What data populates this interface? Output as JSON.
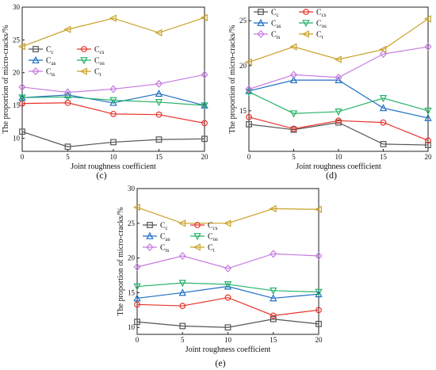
{
  "panel_labels": [
    "(c)",
    "(d)",
    "(e)"
  ],
  "chart_data": [
    {
      "type": "line",
      "panel": "(c)",
      "xlabel": "Joint roughness coefficient",
      "ylabel": "The proportion of micro-cracks/%",
      "x": [
        0,
        5,
        10,
        15,
        20
      ],
      "xlim": [
        0,
        20
      ],
      "ylim": [
        8,
        30
      ],
      "yticks": [
        10,
        15,
        20,
        25,
        30
      ],
      "legend_position": "upper-left",
      "series": [
        {
          "name": "C",
          "sub": "c",
          "color": "#555555",
          "marker": "square",
          "values": [
            11.0,
            8.7,
            9.4,
            9.8,
            9.9
          ]
        },
        {
          "name": "C",
          "sub": "cs",
          "color": "#e8332b",
          "marker": "circle",
          "values": [
            15.3,
            15.4,
            13.7,
            13.6,
            12.3
          ]
        },
        {
          "name": "C",
          "sub": "as",
          "color": "#1f6fc4",
          "marker": "triangle-up",
          "values": [
            16.2,
            16.6,
            15.4,
            16.8,
            15.0
          ]
        },
        {
          "name": "C",
          "sub": "os",
          "color": "#25b368",
          "marker": "triangle-down",
          "values": [
            16.2,
            16.3,
            15.8,
            15.5,
            15.0
          ]
        },
        {
          "name": "C",
          "sub": "ts",
          "color": "#c679e0",
          "marker": "diamond",
          "values": [
            17.8,
            17.0,
            17.5,
            18.3,
            19.7
          ]
        },
        {
          "name": "C",
          "sub": "t",
          "color": "#c9a227",
          "marker": "triangle-left",
          "values": [
            24.0,
            26.6,
            28.3,
            26.1,
            28.4
          ]
        }
      ]
    },
    {
      "type": "line",
      "panel": "(d)",
      "xlabel": "Joint roughness coefficient",
      "ylabel": "The proportion of micro-cracks/%",
      "x": [
        0,
        5,
        10,
        15,
        20
      ],
      "xlim": [
        0,
        20
      ],
      "ylim": [
        10.5,
        26.5
      ],
      "yticks": [
        15,
        20,
        25
      ],
      "legend_position": "upper-left",
      "series": [
        {
          "name": "C",
          "sub": "c",
          "color": "#555555",
          "marker": "square",
          "values": [
            13.5,
            12.9,
            13.7,
            11.3,
            11.2
          ]
        },
        {
          "name": "C",
          "sub": "cs",
          "color": "#e8332b",
          "marker": "circle",
          "values": [
            14.3,
            13.0,
            13.9,
            13.7,
            11.7
          ]
        },
        {
          "name": "C",
          "sub": "as",
          "color": "#1f6fc4",
          "marker": "triangle-up",
          "values": [
            17.2,
            18.4,
            18.4,
            15.3,
            14.2
          ]
        },
        {
          "name": "C",
          "sub": "os",
          "color": "#25b368",
          "marker": "triangle-down",
          "values": [
            17.1,
            14.7,
            14.9,
            16.4,
            15.0
          ]
        },
        {
          "name": "C",
          "sub": "ts",
          "color": "#c679e0",
          "marker": "diamond",
          "values": [
            17.4,
            19.0,
            18.7,
            21.3,
            22.1
          ]
        },
        {
          "name": "C",
          "sub": "t",
          "color": "#c9a227",
          "marker": "triangle-left",
          "values": [
            20.4,
            22.1,
            20.7,
            21.8,
            25.2
          ]
        }
      ]
    },
    {
      "type": "line",
      "panel": "(e)",
      "xlabel": "Joint roughness coefficient",
      "ylabel": "The proportion of micro-cracks/%",
      "x": [
        0,
        5,
        10,
        15,
        20
      ],
      "xlim": [
        0,
        20
      ],
      "ylim": [
        9,
        30
      ],
      "yticks": [
        10,
        15,
        20,
        25,
        30
      ],
      "legend_position": "upper-left",
      "series": [
        {
          "name": "C",
          "sub": "c",
          "color": "#555555",
          "marker": "square",
          "values": [
            10.8,
            10.2,
            10.0,
            11.2,
            10.5
          ]
        },
        {
          "name": "C",
          "sub": "cs",
          "color": "#e8332b",
          "marker": "circle",
          "values": [
            13.3,
            13.1,
            14.3,
            11.7,
            12.5
          ]
        },
        {
          "name": "C",
          "sub": "as",
          "color": "#1f6fc4",
          "marker": "triangle-up",
          "values": [
            14.2,
            15.0,
            15.9,
            14.2,
            14.8
          ]
        },
        {
          "name": "C",
          "sub": "os",
          "color": "#25b368",
          "marker": "triangle-down",
          "values": [
            15.9,
            16.4,
            16.2,
            15.3,
            15.1
          ]
        },
        {
          "name": "C",
          "sub": "ts",
          "color": "#c679e0",
          "marker": "diamond",
          "values": [
            18.7,
            20.3,
            18.5,
            20.6,
            20.3
          ]
        },
        {
          "name": "C",
          "sub": "t",
          "color": "#c9a227",
          "marker": "triangle-left",
          "values": [
            27.3,
            25.0,
            25.0,
            27.1,
            27.0
          ]
        }
      ]
    }
  ]
}
